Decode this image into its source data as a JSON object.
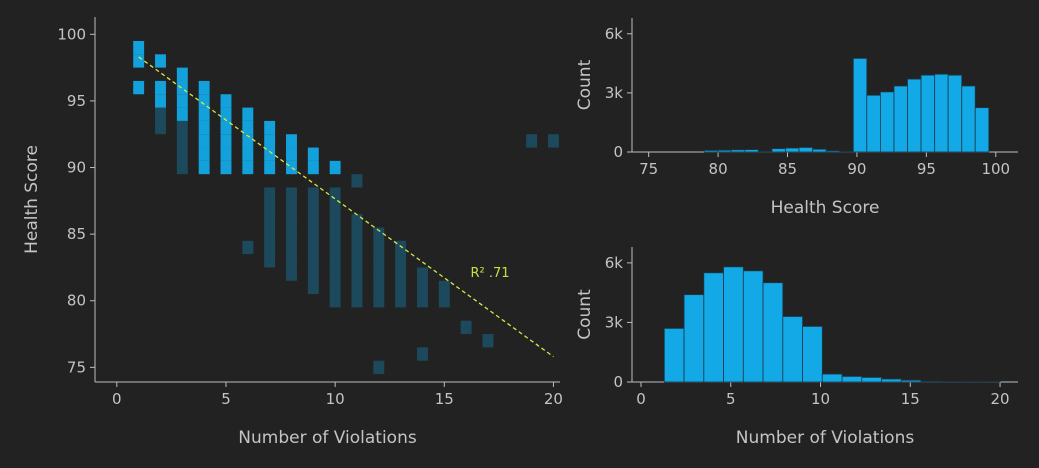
{
  "chart_data": [
    {
      "type": "scatter",
      "xlabel": "Number of Violations",
      "ylabel": "Health Score",
      "xlim": [
        -1,
        20.3
      ],
      "ylim": [
        73.9,
        101.3
      ],
      "xticks": [
        0,
        5,
        10,
        15,
        20
      ],
      "yticks": [
        75,
        80,
        85,
        90,
        95,
        100
      ],
      "series": [
        {
          "color": "#12a9e6",
          "x": [
            1,
            1,
            1,
            2,
            2,
            2,
            3,
            3,
            3,
            3,
            4,
            4,
            4,
            4,
            4,
            4,
            4,
            5,
            5,
            5,
            5,
            5,
            5,
            6,
            6,
            6,
            6,
            6,
            7,
            7,
            7,
            7,
            8,
            8,
            8,
            9,
            9,
            10
          ],
          "values": [
            98,
            99,
            96,
            98,
            96,
            95,
            94,
            95,
            96,
            97,
            90,
            91,
            92,
            93,
            94,
            95,
            96,
            90,
            91,
            92,
            93,
            94,
            95,
            90,
            91,
            92,
            93,
            94,
            90,
            91,
            92,
            93,
            90,
            91,
            92,
            90,
            91,
            90
          ]
        },
        {
          "color": "#12a9e6",
          "x": [
            3,
            3,
            3,
            3,
            2,
            2,
            7,
            7,
            7,
            7,
            7,
            7,
            8,
            8,
            8,
            8,
            8,
            8,
            8,
            9,
            9,
            9,
            9,
            9,
            9,
            9,
            9,
            10,
            10,
            10,
            10,
            10,
            10,
            10,
            10,
            10,
            11,
            11,
            11,
            11,
            11,
            11,
            11,
            12,
            12,
            12,
            12,
            12,
            12,
            13,
            13,
            13,
            13,
            13,
            14,
            14,
            14,
            15,
            15,
            16,
            17,
            14,
            12,
            19,
            20,
            11,
            6
          ],
          "values": [
            90,
            91,
            92,
            93,
            93,
            94,
            83,
            84,
            85,
            86,
            87,
            88,
            82,
            83,
            84,
            85,
            86,
            87,
            88,
            81,
            82,
            83,
            84,
            85,
            86,
            87,
            88,
            80,
            81,
            82,
            83,
            84,
            85,
            86,
            87,
            88,
            80,
            81,
            82,
            83,
            84,
            85,
            86,
            80,
            81,
            82,
            83,
            84,
            85,
            80,
            81,
            82,
            83,
            84,
            80,
            81,
            82,
            80,
            81,
            78,
            77,
            76,
            75,
            92,
            92,
            89,
            84
          ]
        }
      ],
      "trendline": {
        "color": "#d4e84a",
        "x": [
          1,
          20
        ],
        "values": [
          98.3,
          75.8
        ]
      },
      "annotations": [
        {
          "text": "R² .71",
          "x": 16.2,
          "y": 81.8,
          "color": "#c8e03c"
        }
      ]
    },
    {
      "type": "histogram",
      "xlabel": "Health Score",
      "ylabel": "Count",
      "color": "#12a9e6",
      "xlim": [
        73.8,
        101.6
      ],
      "ylim": [
        0,
        6800
      ],
      "xticks": [
        75,
        80,
        85,
        90,
        95,
        100
      ],
      "yticks": [
        0,
        {
          "value": 3000,
          "label": "3k"
        },
        {
          "value": 6000,
          "label": "6k"
        }
      ],
      "bins": [
        79,
        79.98,
        80.95,
        81.93,
        82.9,
        83.88,
        84.86,
        85.83,
        86.81,
        87.79,
        88.76,
        89.74,
        90.71,
        91.69,
        92.67,
        93.64,
        94.62,
        95.6,
        96.57,
        97.55,
        98.52,
        99.5
      ],
      "values": [
        80,
        90,
        110,
        120,
        40,
        170,
        200,
        230,
        140,
        60,
        20,
        4750,
        2880,
        3050,
        3350,
        3700,
        3900,
        3950,
        3900,
        3350,
        2250
      ]
    },
    {
      "type": "histogram",
      "xlabel": "Number of Violations",
      "ylabel": "Count",
      "color": "#12a9e6",
      "xlim": [
        -0.5,
        21
      ],
      "ylim": [
        0,
        6800
      ],
      "xticks": [
        0,
        5,
        10,
        15,
        20
      ],
      "yticks": [
        0,
        {
          "value": 3000,
          "label": "3k"
        },
        {
          "value": 6000,
          "label": "6k"
        }
      ],
      "bins": [
        1.3,
        2.4,
        3.5,
        4.6,
        5.7,
        6.8,
        7.9,
        9.0,
        10.1,
        11.2,
        12.3,
        13.4,
        14.5,
        15.6,
        16.7,
        17.8,
        18.9,
        20.0
      ],
      "values": [
        2700,
        4400,
        5500,
        5800,
        5600,
        5000,
        3300,
        2800,
        400,
        280,
        230,
        150,
        90,
        40,
        15,
        8,
        4
      ]
    }
  ]
}
